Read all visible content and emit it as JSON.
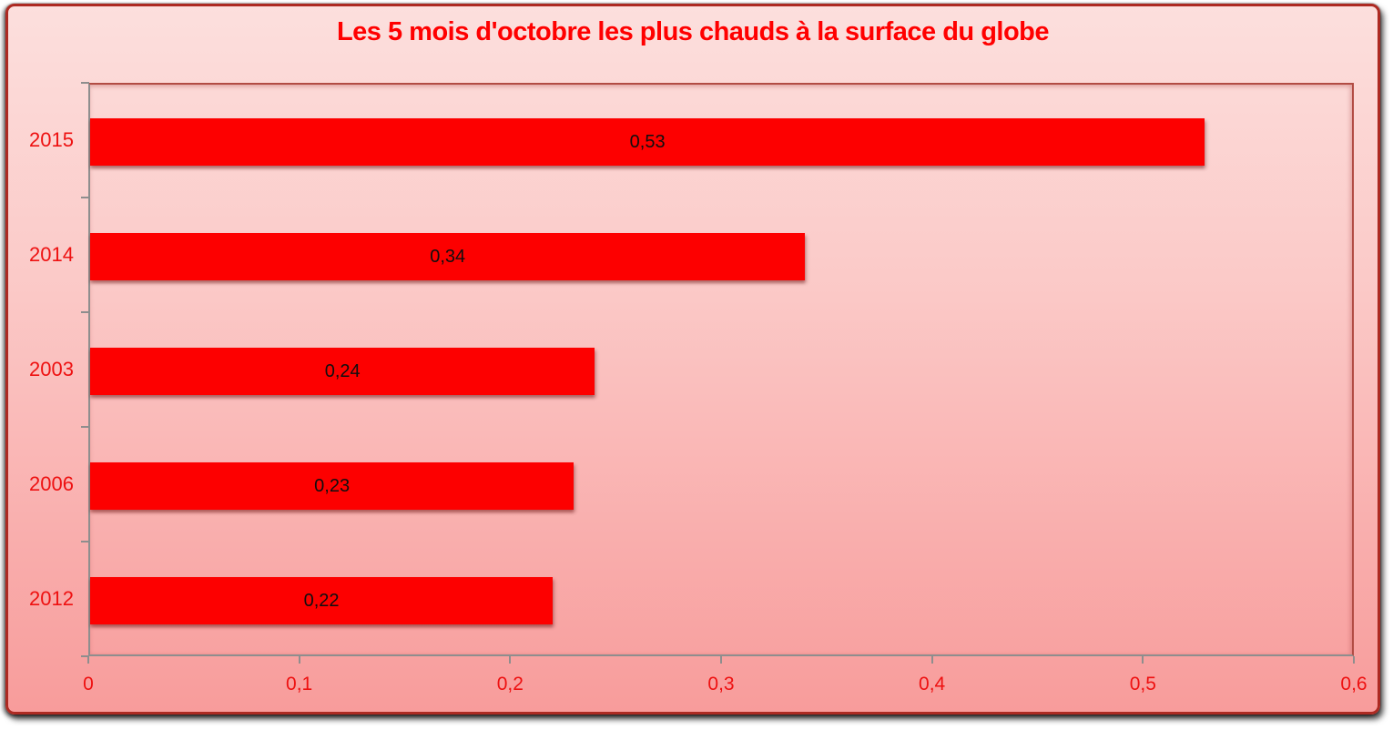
{
  "chart_data": {
    "type": "bar",
    "orientation": "horizontal",
    "title": "Les 5 mois d'octobre les plus chauds à la surface du globe",
    "categories": [
      "2015",
      "2014",
      "2003",
      "2006",
      "2012"
    ],
    "values": [
      0.53,
      0.34,
      0.24,
      0.23,
      0.22
    ],
    "value_labels": [
      "0,53",
      "0,34",
      "0,24",
      "0,23",
      "0,22"
    ],
    "x_tick_labels": [
      "0",
      "0,1",
      "0,2",
      "0,3",
      "0,4",
      "0,5",
      "0,6"
    ],
    "x_tick_values": [
      0,
      0.1,
      0.2,
      0.3,
      0.4,
      0.5,
      0.6
    ],
    "xlim": [
      0,
      0.6
    ],
    "xlabel": "",
    "ylabel": "",
    "grid": false,
    "legend": "none",
    "decimal_separator": ",",
    "colors": {
      "bar": "#fd0000",
      "title": "#ff0000",
      "axis_labels": "#ee1111",
      "value_labels": "#0f0f0f",
      "axis_line": "#8e8e8e",
      "plot_border_accent": "#b24c44",
      "frame_border": "#ad2a22",
      "background_top": "#fcdfdd",
      "background_bottom": "#f89c9b"
    }
  }
}
